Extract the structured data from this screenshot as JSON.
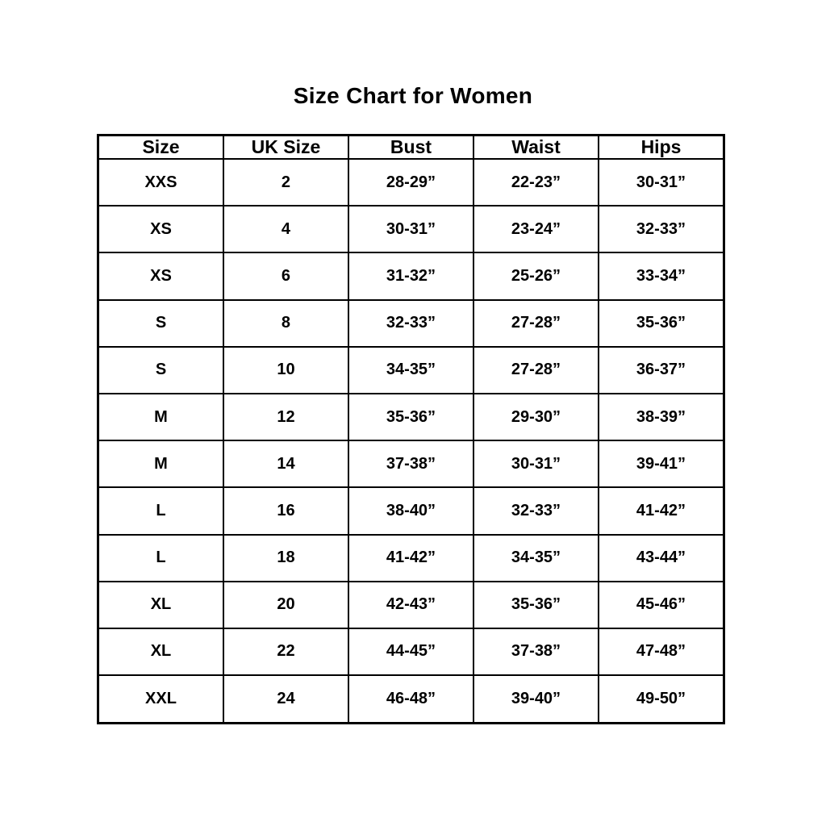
{
  "page": {
    "background_color": "#ffffff",
    "text_color": "#000000",
    "border_color": "#000000"
  },
  "chart_data": {
    "type": "table",
    "title": "Size Chart for Women",
    "columns": [
      "Size",
      "UK Size",
      "Bust",
      "Waist",
      "Hips"
    ],
    "rows": [
      [
        "XXS",
        "2",
        "28-29”",
        "22-23”",
        "30-31”"
      ],
      [
        "XS",
        "4",
        "30-31”",
        "23-24”",
        "32-33”"
      ],
      [
        "XS",
        "6",
        "31-32”",
        "25-26”",
        "33-34”"
      ],
      [
        "S",
        "8",
        "32-33”",
        "27-28”",
        "35-36”"
      ],
      [
        "S",
        "10",
        "34-35”",
        "27-28”",
        "36-37”"
      ],
      [
        "M",
        "12",
        "35-36”",
        "29-30”",
        "38-39”"
      ],
      [
        "M",
        "14",
        "37-38”",
        "30-31”",
        "39-41”"
      ],
      [
        "L",
        "16",
        "38-40”",
        "32-33”",
        "41-42”"
      ],
      [
        "L",
        "18",
        "41-42”",
        "34-35”",
        "43-44”"
      ],
      [
        "XL",
        "20",
        "42-43”",
        "35-36”",
        "45-46”"
      ],
      [
        "XL",
        "22",
        "44-45”",
        "37-38”",
        "47-48”"
      ],
      [
        "XXL",
        "24",
        "46-48”",
        "39-40”",
        "49-50”"
      ]
    ],
    "layout": {
      "grid": "full-borders",
      "header_position": "top",
      "alignment": "center"
    }
  }
}
